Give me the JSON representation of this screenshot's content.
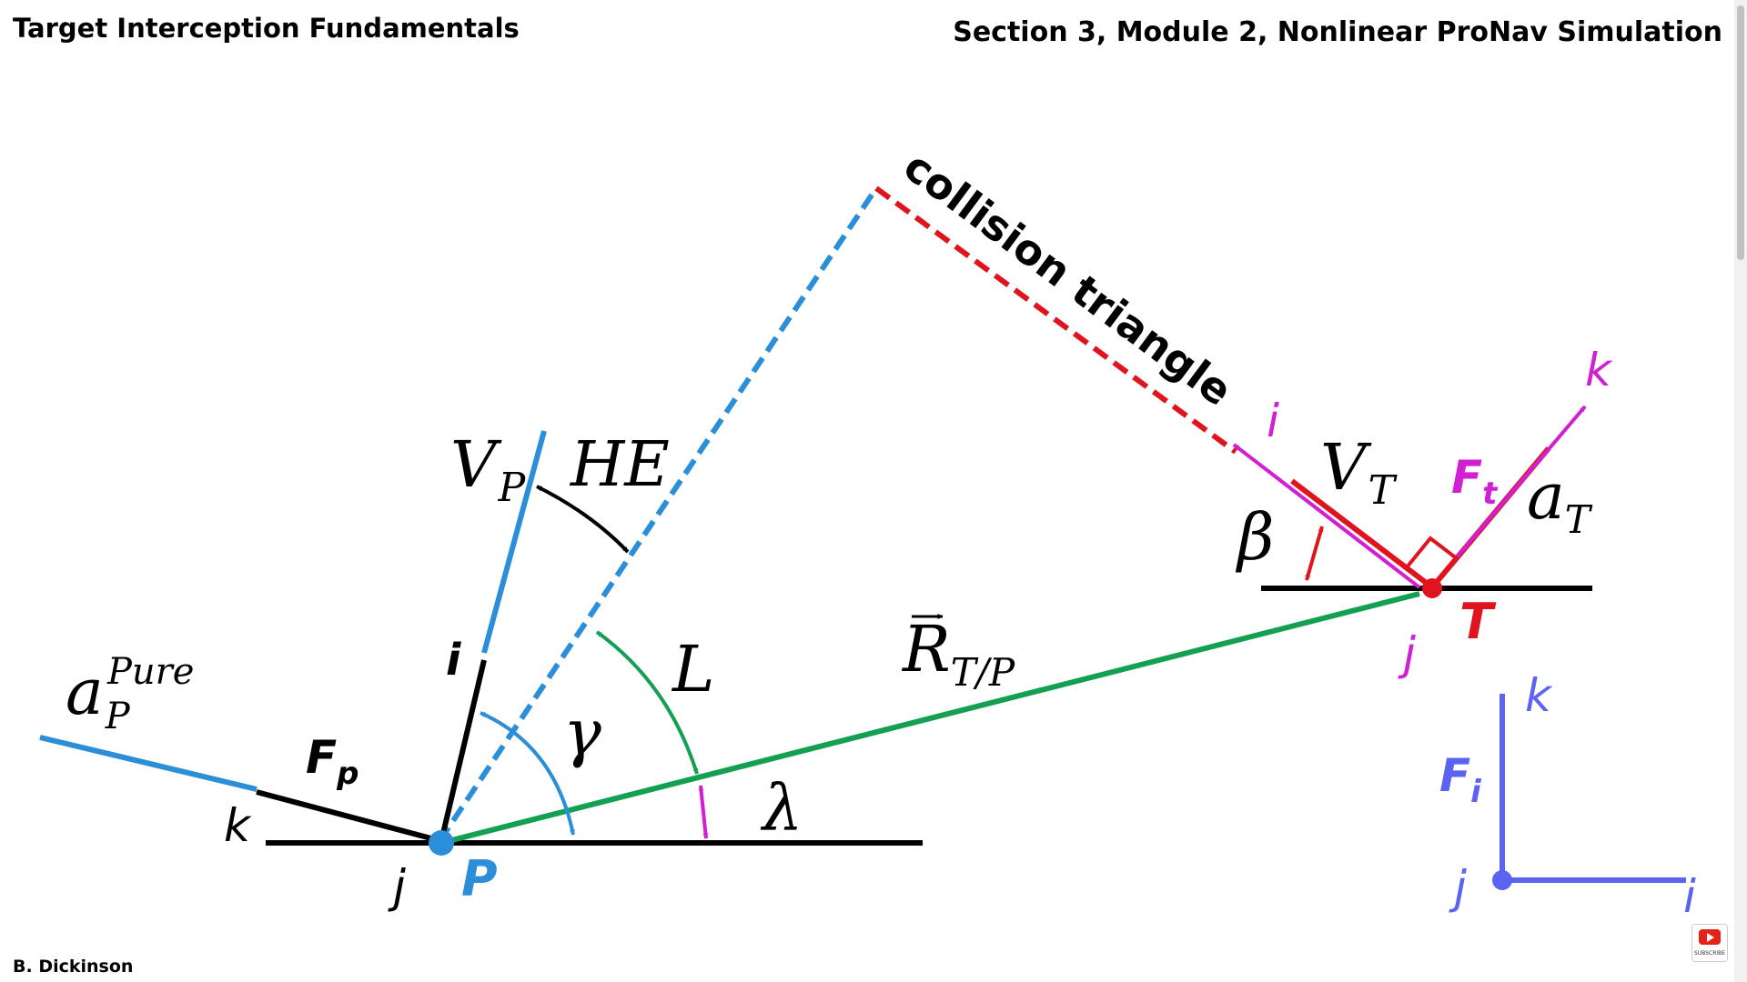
{
  "header": {
    "left_title": "Target Interception Fundamentals",
    "right_title": "Section 3, Module 2, Nonlinear ProNav Simulation"
  },
  "footer": {
    "author": "B. Dickinson"
  },
  "colors": {
    "pursuer_blue": "#2a8fd8",
    "los_green": "#13a052",
    "target_red": "#e0141e",
    "magenta": "#d11fd4",
    "inertial_purple": "#5b63f2",
    "black": "#000000"
  },
  "diagram": {
    "collision_triangle": "collision triangle",
    "pursuer": {
      "point": "P",
      "velocity": "V",
      "velocity_sub": "P",
      "heading_error": "HE",
      "flight_path_angle": "γ",
      "lead_angle": "L",
      "accel": "a",
      "accel_sub": "P",
      "accel_sup": "Pure",
      "frame": "F",
      "frame_sub": "p",
      "axis_i": "i",
      "axis_j": "j",
      "axis_k": "k"
    },
    "los": {
      "range": "R",
      "range_sub": "T/P",
      "angle": "λ"
    },
    "target": {
      "point": "T",
      "velocity": "V",
      "velocity_sub": "T",
      "heading": "β",
      "accel": "a",
      "accel_sub": "T",
      "frame": "F",
      "frame_sub": "t",
      "axis_i": "i",
      "axis_j": "j",
      "axis_k": "k"
    },
    "inertial": {
      "frame": "F",
      "frame_sub": "i",
      "axis_i": "i",
      "axis_j": "j",
      "axis_k": "k"
    }
  },
  "youtube": {
    "icon": "youtube-subscribe-icon",
    "label": "SUBSCRIBE"
  }
}
